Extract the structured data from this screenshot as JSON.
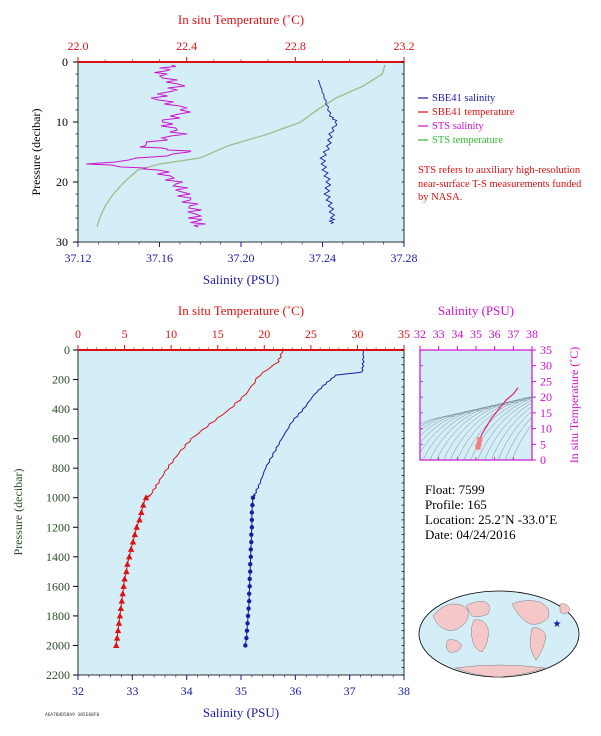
{
  "chart_data": [
    {
      "type": "line",
      "panel": "top",
      "top_axis": {
        "label": "In situ Temperature (˚C)",
        "ticks": [
          "22.0",
          "22.4",
          "22.8",
          "23.2"
        ],
        "range": [
          22.0,
          23.2
        ]
      },
      "bottom_axis": {
        "label": "Salinity (PSU)",
        "ticks": [
          "37.12",
          "37.16",
          "37.20",
          "37.24",
          "37.28"
        ],
        "range": [
          37.12,
          37.28
        ]
      },
      "left_axis": {
        "label": "Pressure (decibar)",
        "ticks": [
          "0",
          "10",
          "20",
          "30"
        ],
        "range": [
          0,
          30
        ],
        "inverted": true
      },
      "series": [
        {
          "name": "SBE41 salinity",
          "color": "#1a1aa8",
          "points": [
            [
              37.238,
              3
            ],
            [
              37.24,
              5
            ],
            [
              37.242,
              7
            ],
            [
              37.244,
              9
            ],
            [
              37.247,
              10
            ],
            [
              37.244,
              12
            ],
            [
              37.243,
              14
            ],
            [
              37.24,
              16
            ],
            [
              37.241,
              18
            ],
            [
              37.243,
              20
            ],
            [
              37.242,
              22
            ],
            [
              37.244,
              24
            ],
            [
              37.245,
              26
            ],
            [
              37.244,
              27
            ]
          ]
        },
        {
          "name": "SBE41 temperature",
          "color": "#dd1111",
          "points": []
        },
        {
          "name": "STS salinity",
          "color": "#cc11cc",
          "points": [
            [
              37.166,
              0.5
            ],
            [
              37.16,
              2
            ],
            [
              37.17,
              4
            ],
            [
              37.158,
              6
            ],
            [
              37.174,
              8
            ],
            [
              37.162,
              10
            ],
            [
              37.17,
              12
            ],
            [
              37.15,
              14
            ],
            [
              37.176,
              15
            ],
            [
              37.128,
              17
            ],
            [
              37.16,
              18
            ],
            [
              37.168,
              20
            ],
            [
              37.172,
              22
            ],
            [
              37.176,
              24
            ],
            [
              37.178,
              26
            ],
            [
              37.179,
              27.5
            ]
          ]
        },
        {
          "name": "STS temperature",
          "color": "#9fbf8f",
          "points": [
            [
              23.13,
              0.5
            ],
            [
              23.12,
              2
            ],
            [
              23.05,
              4
            ],
            [
              22.95,
              6
            ],
            [
              22.88,
              8
            ],
            [
              22.82,
              10
            ],
            [
              22.7,
              12
            ],
            [
              22.55,
              14
            ],
            [
              22.45,
              16
            ],
            [
              22.3,
              17
            ],
            [
              22.22,
              18
            ],
            [
              22.17,
              20
            ],
            [
              22.13,
              22
            ],
            [
              22.1,
              24
            ],
            [
              22.08,
              26
            ],
            [
              22.07,
              27.5
            ]
          ]
        }
      ],
      "annotation": "STS refers to auxiliary high-resolution near-surface T-S measurements funded by NASA."
    },
    {
      "type": "line",
      "panel": "bottom",
      "top_axis": {
        "label": "In situ Temperature (˚C)",
        "ticks": [
          "0",
          "5",
          "10",
          "15",
          "20",
          "25",
          "30",
          "35"
        ],
        "range": [
          0,
          35
        ]
      },
      "bottom_axis": {
        "label": "Salinity (PSU)",
        "ticks": [
          "32",
          "33",
          "34",
          "35",
          "36",
          "37",
          "38"
        ],
        "range": [
          32,
          38
        ]
      },
      "left_axis": {
        "label": "Pressure (decibar)",
        "ticks": [
          "0",
          "200",
          "400",
          "600",
          "800",
          "1000",
          "1200",
          "1400",
          "1600",
          "1800",
          "2000",
          "2200"
        ],
        "range": [
          0,
          2200
        ],
        "inverted": true
      },
      "series": [
        {
          "name": "Salinity",
          "color": "#1a1aa8",
          "line": [
            [
              37.25,
              0
            ],
            [
              37.25,
              80
            ],
            [
              37.23,
              150
            ],
            [
              36.75,
              170
            ],
            [
              36.55,
              230
            ],
            [
              36.35,
              300
            ],
            [
              36.15,
              400
            ],
            [
              35.95,
              480
            ],
            [
              35.75,
              600
            ],
            [
              35.6,
              700
            ],
            [
              35.45,
              800
            ],
            [
              35.35,
              900
            ],
            [
              35.25,
              980
            ],
            [
              35.22,
              1000
            ]
          ],
          "markers": [
            [
              35.22,
              1000
            ],
            [
              35.21,
              1050
            ],
            [
              35.2,
              1100
            ],
            [
              35.2,
              1150
            ],
            [
              35.2,
              1200
            ],
            [
              35.19,
              1250
            ],
            [
              35.19,
              1300
            ],
            [
              35.18,
              1350
            ],
            [
              35.18,
              1400
            ],
            [
              35.17,
              1450
            ],
            [
              35.17,
              1500
            ],
            [
              35.16,
              1550
            ],
            [
              35.16,
              1600
            ],
            [
              35.15,
              1650
            ],
            [
              35.15,
              1700
            ],
            [
              35.14,
              1750
            ],
            [
              35.13,
              1800
            ],
            [
              35.12,
              1850
            ],
            [
              35.11,
              1900
            ],
            [
              35.1,
              1950
            ],
            [
              35.08,
              2000
            ]
          ]
        },
        {
          "name": "Temperature",
          "color": "#dd1111",
          "line": [
            [
              22.0,
              0
            ],
            [
              21.5,
              80
            ],
            [
              19.5,
              170
            ],
            [
              18.0,
              300
            ],
            [
              16.3,
              400
            ],
            [
              14.2,
              500
            ],
            [
              12.2,
              600
            ],
            [
              10.8,
              700
            ],
            [
              9.6,
              800
            ],
            [
              8.6,
              900
            ],
            [
              7.8,
              980
            ],
            [
              7.3,
              1000
            ]
          ],
          "markers": [
            [
              7.3,
              1000
            ],
            [
              7.0,
              1050
            ],
            [
              6.8,
              1100
            ],
            [
              6.6,
              1150
            ],
            [
              6.3,
              1200
            ],
            [
              6.1,
              1250
            ],
            [
              5.9,
              1300
            ],
            [
              5.7,
              1350
            ],
            [
              5.5,
              1400
            ],
            [
              5.3,
              1450
            ],
            [
              5.2,
              1500
            ],
            [
              5.0,
              1550
            ],
            [
              4.9,
              1600
            ],
            [
              4.8,
              1650
            ],
            [
              4.7,
              1700
            ],
            [
              4.6,
              1750
            ],
            [
              4.5,
              1800
            ],
            [
              4.4,
              1850
            ],
            [
              4.3,
              1900
            ],
            [
              4.2,
              1950
            ],
            [
              4.1,
              2000
            ]
          ]
        }
      ]
    },
    {
      "type": "scatter",
      "panel": "ts-diagram",
      "top_axis": {
        "label": "Salinity (PSU)",
        "ticks": [
          "32",
          "33",
          "34",
          "35",
          "36",
          "37",
          "38"
        ],
        "range": [
          32,
          38
        ]
      },
      "right_axis": {
        "label": "In situ Temperature (˚C)",
        "ticks": [
          "0",
          "5",
          "10",
          "15",
          "20",
          "25",
          "30",
          "35"
        ],
        "range": [
          0,
          35
        ]
      },
      "points": [
        [
          35.1,
          4.1
        ],
        [
          35.15,
          5
        ],
        [
          35.2,
          6.5
        ],
        [
          35.3,
          8
        ],
        [
          35.5,
          10
        ],
        [
          35.8,
          13
        ],
        [
          36.2,
          16
        ],
        [
          36.6,
          19
        ],
        [
          37.0,
          21
        ],
        [
          37.25,
          23
        ]
      ]
    }
  ],
  "legend": [
    {
      "label": "SBE41 salinity",
      "color": "#1a1aa8"
    },
    {
      "label": "SBE41 temperature",
      "color": "#dd1111"
    },
    {
      "label": "STS salinity",
      "color": "#cc11cc"
    },
    {
      "label": "STS temperature",
      "color": "#9fbf8f"
    }
  ],
  "info": {
    "float": "Float:  7599",
    "profile": "Profile:  165",
    "location": "Location:  25.2˚N  -33.0˚E",
    "date": "Date:  04/24/2016"
  },
  "footer_code": "A6A7B4D58A9 305E60F0"
}
